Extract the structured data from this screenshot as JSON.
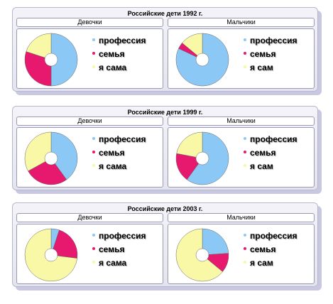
{
  "colors": {
    "profession": "#8cc8f5",
    "family": "#e6196e",
    "self": "#f8f8a6"
  },
  "chart_data": [
    {
      "type": "pie",
      "title": "Российские дети 1992 г.",
      "charts": [
        {
          "name": "Девочки",
          "legend": [
            "профессия",
            "семья",
            "я сама"
          ],
          "values": [
            50,
            30,
            20
          ]
        },
        {
          "name": "Мальчики",
          "legend": [
            "профессия",
            "семья",
            "я сам"
          ],
          "values": [
            82,
            4,
            14
          ]
        }
      ]
    },
    {
      "type": "pie",
      "title": "Российские дети 1999 г.",
      "charts": [
        {
          "name": "Девочки",
          "legend": [
            "профессия",
            "семья",
            "я сама"
          ],
          "values": [
            40,
            27,
            33
          ]
        },
        {
          "name": "Мальчики",
          "legend": [
            "профессия",
            "семья",
            "я сам"
          ],
          "values": [
            60,
            18,
            22
          ]
        }
      ]
    },
    {
      "type": "pie",
      "title": "Российские дети 2003 г.",
      "charts": [
        {
          "name": "Девочки",
          "legend": [
            "профессия",
            "семья",
            "я сама"
          ],
          "values": [
            5,
            22,
            73
          ]
        },
        {
          "name": "Мальчики",
          "legend": [
            "профессия",
            "семья",
            "я сам"
          ],
          "values": [
            24,
            12,
            64
          ]
        }
      ]
    }
  ]
}
